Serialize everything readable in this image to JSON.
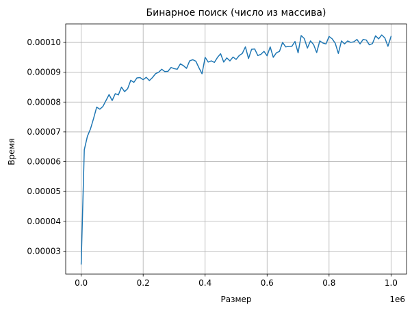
{
  "chart_data": {
    "type": "line",
    "title": "Бинарное поиск (число из массива)",
    "xlabel": "Размер",
    "ylabel": "Время",
    "x_offset_label": "1e6",
    "xlim": [
      -0.05,
      1.05
    ],
    "ylim": [
      2.23e-05,
      0.0001062
    ],
    "grid": true,
    "x_ticks": [
      0.0,
      0.2,
      0.4,
      0.6,
      0.8,
      1.0
    ],
    "x_tick_labels": [
      "0.0",
      "0.2",
      "0.4",
      "0.6",
      "0.8",
      "1.0"
    ],
    "y_ticks": [
      3e-05,
      4e-05,
      5e-05,
      6e-05,
      7e-05,
      8e-05,
      9e-05,
      0.0001
    ],
    "y_tick_labels": [
      "0.00003",
      "0.00004",
      "0.00005",
      "0.00006",
      "0.00007",
      "0.00008",
      "0.00009",
      "0.00010"
    ],
    "series": [
      {
        "color": "#1f77b4",
        "x": [
          0.0,
          0.01,
          0.02,
          0.03,
          0.04,
          0.05,
          0.06,
          0.07,
          0.08,
          0.09,
          0.1,
          0.11,
          0.12,
          0.13,
          0.14,
          0.15,
          0.16,
          0.17,
          0.18,
          0.19,
          0.2,
          0.21,
          0.22,
          0.23,
          0.24,
          0.25,
          0.26,
          0.27,
          0.28,
          0.29,
          0.3,
          0.31,
          0.32,
          0.33,
          0.34,
          0.35,
          0.36,
          0.37,
          0.38,
          0.39,
          0.4,
          0.41,
          0.42,
          0.43,
          0.44,
          0.45,
          0.46,
          0.47,
          0.48,
          0.49,
          0.5,
          0.51,
          0.52,
          0.53,
          0.54,
          0.55,
          0.56,
          0.57,
          0.58,
          0.59,
          0.6,
          0.61,
          0.62,
          0.63,
          0.64,
          0.65,
          0.66,
          0.67,
          0.68,
          0.69,
          0.7,
          0.71,
          0.72,
          0.73,
          0.74,
          0.75,
          0.76,
          0.77,
          0.78,
          0.79,
          0.8,
          0.81,
          0.82,
          0.83,
          0.84,
          0.85,
          0.86,
          0.87,
          0.88,
          0.89,
          0.9,
          0.91,
          0.92,
          0.93,
          0.94,
          0.95,
          0.96,
          0.97,
          0.98,
          0.99,
          1.0
        ],
        "values": [
          2.57e-05,
          6.4e-05,
          6.85e-05,
          7.1e-05,
          7.45e-05,
          7.83e-05,
          7.76e-05,
          7.85e-05,
          8.05e-05,
          8.25e-05,
          8.05e-05,
          8.28e-05,
          8.24e-05,
          8.5e-05,
          8.35e-05,
          8.45e-05,
          8.73e-05,
          8.66e-05,
          8.81e-05,
          8.82e-05,
          8.75e-05,
          8.83e-05,
          8.72e-05,
          8.82e-05,
          8.95e-05,
          9e-05,
          9.1e-05,
          9.02e-05,
          9.03e-05,
          9.16e-05,
          9.12e-05,
          9.1e-05,
          9.28e-05,
          9.22e-05,
          9.13e-05,
          9.38e-05,
          9.42e-05,
          9.37e-05,
          9.15e-05,
          8.95e-05,
          9.5e-05,
          9.34e-05,
          9.38e-05,
          9.33e-05,
          9.5e-05,
          9.62e-05,
          9.34e-05,
          9.48e-05,
          9.38e-05,
          9.51e-05,
          9.43e-05,
          9.56e-05,
          9.63e-05,
          9.85e-05,
          9.46e-05,
          9.77e-05,
          9.78e-05,
          9.56e-05,
          9.6e-05,
          9.7e-05,
          9.55e-05,
          9.85e-05,
          9.5e-05,
          9.65e-05,
          9.7e-05,
          0.0001,
          9.85e-05,
          9.87e-05,
          9.87e-05,
          0.0001003,
          9.65e-05,
          0.0001023,
          0.0001013,
          9.81e-05,
          0.0001005,
          9.93e-05,
          9.66e-05,
          0.0001005,
          9.98e-05,
          9.95e-05,
          0.000102,
          0.0001012,
          9.97e-05,
          9.63e-05,
          0.0001005,
          9.95e-05,
          0.0001005,
          0.0001,
          0.0001002,
          0.000101,
          9.95e-05,
          0.000101,
          0.0001008,
          9.92e-05,
          9.96e-05,
          0.0001022,
          0.0001012,
          0.0001025,
          0.0001015,
          9.87e-05,
          0.000102
        ]
      }
    ]
  }
}
